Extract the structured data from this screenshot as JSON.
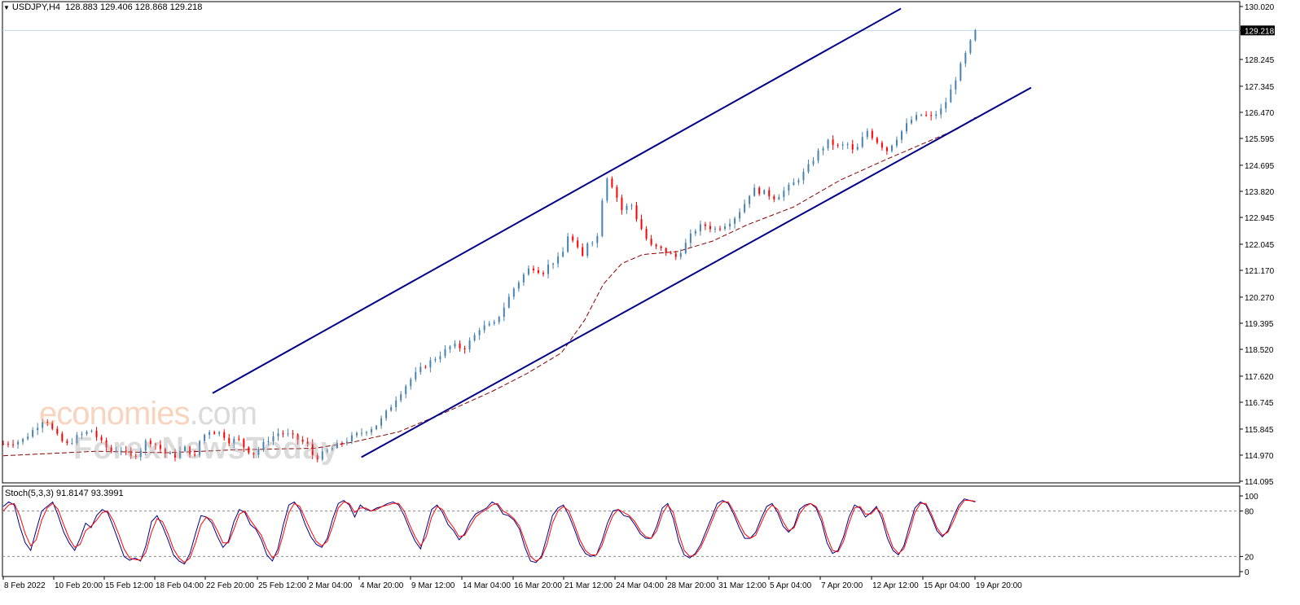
{
  "header": {
    "symbol": "USDJPY,H4",
    "ohlc": "128.883 129.406 128.868 129.218"
  },
  "stoch_label": "Stoch(5,3,3) 91.8147 93.3991",
  "watermark": {
    "brand_main": "economies",
    "brand_suffix": ".com",
    "sub": "ForexNewsToday"
  },
  "current_price_label": "129.218",
  "colors": {
    "bull": "#4682b4",
    "bear": "#ff0000",
    "channel": "#00008b",
    "ma": "#8b0000",
    "stoch_main": "#00008b",
    "stoch_signal": "#ff0000",
    "price_line": "#c0d8e8"
  },
  "chart_data": {
    "type": "candlestick",
    "price_axis": {
      "ticks": [
        "130.020",
        "129.218",
        "128.245",
        "127.345",
        "126.470",
        "125.595",
        "124.695",
        "123.820",
        "122.945",
        "122.045",
        "121.170",
        "120.270",
        "119.395",
        "118.520",
        "117.620",
        "116.745",
        "115.845",
        "114.970",
        "114.095"
      ],
      "range": [
        114.095,
        130.02
      ]
    },
    "stoch_axis": {
      "ticks": [
        "100",
        "80",
        "20",
        "0"
      ],
      "range": [
        0,
        100
      ],
      "levels": [
        80,
        20
      ]
    },
    "time_axis": [
      "8 Feb 2022",
      "10 Feb 20:00",
      "15 Feb 12:00",
      "18 Feb 04:00",
      "22 Feb 20:00",
      "25 Feb 12:00",
      "2 Mar 04:00",
      "4 Mar 20:00",
      "9 Mar 12:00",
      "14 Mar 04:00",
      "16 Mar 20:00",
      "21 Mar 12:00",
      "24 Mar 04:00",
      "28 Mar 20:00",
      "31 Mar 12:00",
      "5 Apr 04:00",
      "7 Apr 20:00",
      "12 Apr 12:00",
      "15 Apr 04:00",
      "19 Apr 20:00"
    ],
    "bar_count": 199,
    "last_close": 129.218,
    "price_path": [
      [
        0,
        115.35
      ],
      [
        8,
        115.45
      ],
      [
        14,
        115.9
      ],
      [
        18,
        116.25
      ],
      [
        22,
        115.7
      ],
      [
        27,
        115.3
      ],
      [
        32,
        115.6
      ],
      [
        38,
        115.8
      ],
      [
        42,
        115.4
      ],
      [
        46,
        115.1
      ],
      [
        50,
        115.2
      ],
      [
        55,
        114.9
      ],
      [
        58,
        115.05
      ],
      [
        62,
        115.5
      ],
      [
        66,
        115.3
      ],
      [
        70,
        115.0
      ],
      [
        74,
        114.95
      ],
      [
        78,
        115.2
      ],
      [
        80,
        115.1
      ],
      [
        82,
        114.8
      ],
      [
        84,
        115.4
      ],
      [
        88,
        115.8
      ],
      [
        94,
        115.7
      ],
      [
        97,
        115.45
      ],
      [
        101,
        115.5
      ],
      [
        104,
        115.2
      ],
      [
        108,
        115.0
      ],
      [
        110,
        115.2
      ],
      [
        114,
        115.5
      ],
      [
        119,
        115.75
      ],
      [
        124,
        115.6
      ],
      [
        128,
        115.45
      ],
      [
        131,
        115.3
      ],
      [
        132,
        115.1
      ],
      [
        134,
        114.85
      ],
      [
        140,
        115.15
      ],
      [
        146,
        115.4
      ],
      [
        152,
        115.65
      ],
      [
        160,
        115.95
      ],
      [
        163,
        116.2
      ],
      [
        170,
        117.0
      ],
      [
        175,
        117.5
      ],
      [
        180,
        117.9
      ],
      [
        187,
        118.3
      ],
      [
        193,
        118.65
      ],
      [
        198,
        118.55
      ],
      [
        202,
        118.9
      ],
      [
        205,
        119.25
      ],
      [
        211,
        119.35
      ],
      [
        215,
        119.9
      ],
      [
        219,
        120.5
      ],
      [
        223,
        120.95
      ],
      [
        227,
        121.3
      ],
      [
        232,
        121.1
      ],
      [
        235,
        121.4
      ],
      [
        240,
        121.6
      ],
      [
        243,
        122.4
      ],
      [
        246,
        122.0
      ],
      [
        249,
        121.6
      ],
      [
        252,
        122.3
      ],
      [
        255,
        122.0
      ],
      [
        256,
        122.7
      ],
      [
        259,
        124.4
      ],
      [
        262,
        124.0
      ],
      [
        266,
        123.2
      ],
      [
        270,
        123.4
      ],
      [
        273,
        122.8
      ],
      [
        278,
        122.0
      ],
      [
        282,
        121.9
      ],
      [
        286,
        121.75
      ],
      [
        289,
        121.6
      ],
      [
        293,
        122.0
      ],
      [
        297,
        122.5
      ],
      [
        301,
        122.7
      ],
      [
        306,
        122.55
      ],
      [
        310,
        122.7
      ],
      [
        314,
        122.9
      ],
      [
        318,
        123.3
      ],
      [
        322,
        123.9
      ],
      [
        328,
        123.75
      ],
      [
        332,
        123.6
      ],
      [
        336,
        123.85
      ],
      [
        340,
        124.1
      ],
      [
        345,
        124.5
      ],
      [
        350,
        125.1
      ],
      [
        355,
        125.5
      ],
      [
        359,
        125.3
      ],
      [
        363,
        125.4
      ],
      [
        366,
        125.1
      ],
      [
        369,
        125.5
      ],
      [
        371,
        125.9
      ],
      [
        375,
        125.55
      ],
      [
        380,
        125.2
      ],
      [
        383,
        125.5
      ],
      [
        386,
        125.8
      ],
      [
        390,
        126.2
      ],
      [
        395,
        126.4
      ],
      [
        399,
        126.3
      ],
      [
        404,
        126.6
      ],
      [
        408,
        127.3
      ],
      [
        411,
        127.9
      ],
      [
        414,
        128.45
      ],
      [
        418,
        129.218
      ]
    ],
    "ma_path": [
      [
        0,
        114.95
      ],
      [
        40,
        115.1
      ],
      [
        70,
        115.05
      ],
      [
        100,
        115.15
      ],
      [
        134,
        115.2
      ],
      [
        150,
        115.4
      ],
      [
        170,
        115.75
      ],
      [
        190,
        116.4
      ],
      [
        210,
        117.1
      ],
      [
        225,
        117.7
      ],
      [
        240,
        118.4
      ],
      [
        250,
        119.5
      ],
      [
        258,
        120.7
      ],
      [
        266,
        121.4
      ],
      [
        275,
        121.7
      ],
      [
        290,
        121.8
      ],
      [
        305,
        122.15
      ],
      [
        320,
        122.7
      ],
      [
        340,
        123.3
      ],
      [
        360,
        124.2
      ],
      [
        380,
        124.9
      ],
      [
        395,
        125.4
      ],
      [
        410,
        125.9
      ],
      [
        418,
        126.3
      ]
    ],
    "channel": {
      "upper": {
        "from": {
          "date": "22 Feb 2022",
          "price": 117.05
        },
        "to": {
          "date": "20 Apr 2022",
          "price": 129.95
        }
      },
      "lower": {
        "from": {
          "date": "4 Mar 2022",
          "price": 114.9
        },
        "to": {
          "date": "21 Apr 2022",
          "price": 127.3
        }
      }
    },
    "stoch_series": [
      {
        "name": "main",
        "values": [
          86,
          92,
          88,
          60,
          38,
          28,
          55,
          80,
          86,
          92,
          74,
          52,
          38,
          28,
          44,
          64,
          58,
          74,
          82,
          78,
          60,
          40,
          20,
          15,
          18,
          14,
          35,
          66,
          74,
          60,
          42,
          22,
          14,
          10,
          24,
          50,
          74,
          72,
          64,
          46,
          32,
          40,
          66,
          82,
          78,
          62,
          56,
          42,
          22,
          14,
          30,
          62,
          88,
          92,
          82,
          62,
          46,
          36,
          32,
          44,
          70,
          90,
          94,
          88,
          72,
          88,
          82,
          80,
          84,
          86,
          90,
          92,
          88,
          74,
          56,
          40,
          30,
          56,
          82,
          88,
          78,
          62,
          54,
          42,
          50,
          66,
          76,
          80,
          84,
          92,
          88,
          76,
          74,
          68,
          56,
          32,
          14,
          12,
          20,
          46,
          74,
          84,
          88,
          74,
          56,
          36,
          24,
          20,
          22,
          40,
          64,
          80,
          82,
          74,
          72,
          62,
          50,
          44,
          44,
          60,
          84,
          90,
          70,
          40,
          22,
          18,
          24,
          36,
          54,
          72,
          90,
          94,
          90,
          76,
          58,
          44,
          44,
          52,
          70,
          86,
          90,
          78,
          60,
          52,
          60,
          82,
          88,
          90,
          84,
          66,
          38,
          24,
          28,
          46,
          72,
          88,
          84,
          72,
          78,
          86,
          70,
          44,
          28,
          22,
          34,
          60,
          84,
          92,
          88,
          72,
          54,
          46,
          54,
          72,
          88,
          96,
          94,
          92
        ]
      },
      {
        "name": "signal",
        "values": [
          80,
          88,
          90,
          74,
          50,
          34,
          42,
          68,
          84,
          90,
          82,
          62,
          44,
          32,
          36,
          54,
          60,
          68,
          78,
          80,
          68,
          50,
          30,
          18,
          16,
          15,
          26,
          52,
          70,
          66,
          50,
          30,
          18,
          12,
          18,
          38,
          62,
          72,
          68,
          54,
          38,
          38,
          56,
          76,
          80,
          68,
          58,
          48,
          30,
          18,
          24,
          50,
          78,
          90,
          86,
          70,
          54,
          40,
          34,
          40,
          60,
          84,
          92,
          90,
          78,
          84,
          84,
          80,
          82,
          86,
          88,
          90,
          90,
          80,
          62,
          46,
          34,
          46,
          72,
          86,
          82,
          68,
          58,
          46,
          48,
          60,
          72,
          78,
          82,
          88,
          90,
          80,
          76,
          70,
          60,
          40,
          20,
          14,
          18,
          36,
          64,
          80,
          86,
          80,
          62,
          42,
          28,
          22,
          22,
          34,
          56,
          74,
          82,
          78,
          74,
          66,
          54,
          46,
          44,
          54,
          76,
          88,
          78,
          50,
          28,
          20,
          22,
          32,
          48,
          66,
          84,
          92,
          92,
          80,
          64,
          50,
          44,
          48,
          64,
          80,
          88,
          82,
          66,
          54,
          58,
          76,
          86,
          90,
          86,
          72,
          46,
          28,
          26,
          40,
          64,
          84,
          86,
          76,
          76,
          84,
          76,
          52,
          32,
          24,
          30,
          52,
          78,
          90,
          90,
          76,
          58,
          48,
          52,
          66,
          84,
          94,
          94,
          93
        ]
      }
    ]
  }
}
